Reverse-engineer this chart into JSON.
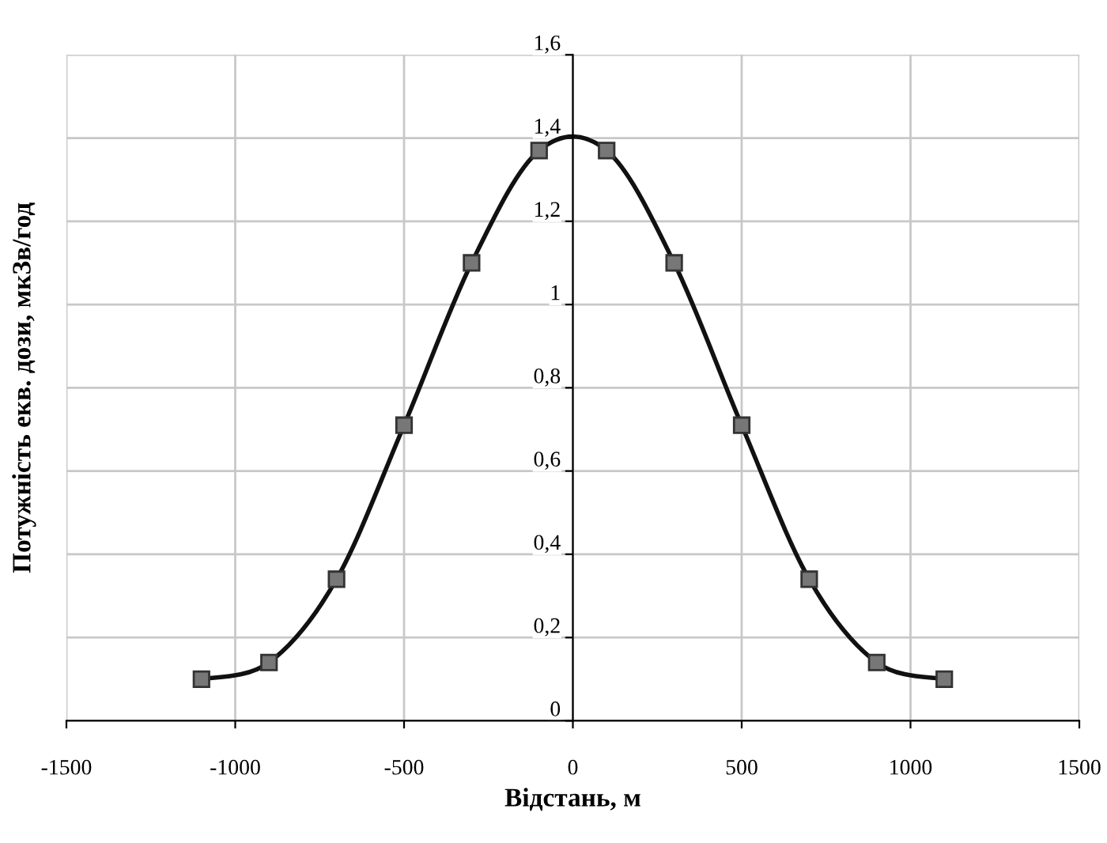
{
  "chart_data": {
    "type": "line",
    "xlabel": "Відстань, м",
    "ylabel": "Потужність екв. дози, мкЗв/год",
    "x": [
      -1100,
      -900,
      -700,
      -500,
      -300,
      -100,
      100,
      300,
      500,
      700,
      900,
      1100
    ],
    "series": [
      {
        "color": "#111111",
        "values": [
          0.1,
          0.14,
          0.34,
          0.71,
          1.1,
          1.37,
          1.37,
          1.1,
          0.71,
          0.34,
          0.14,
          0.1
        ]
      }
    ],
    "xlim": [
      -1500,
      1500
    ],
    "xticks": [
      -1500,
      -1000,
      -500,
      0,
      500,
      1000,
      1500
    ],
    "ylim": [
      0,
      1.6
    ],
    "yticks": [
      {
        "value": 0,
        "label": "0"
      },
      {
        "value": 0.2,
        "label": "0,2"
      },
      {
        "value": 0.4,
        "label": "0,4"
      },
      {
        "value": 0.6,
        "label": "0,6"
      },
      {
        "value": 0.8,
        "label": "0,8"
      },
      {
        "value": 1,
        "label": "1"
      },
      {
        "value": 1.2,
        "label": "1,2"
      },
      {
        "value": 1.4,
        "label": "1,4"
      },
      {
        "value": 1.6,
        "label": "1,6"
      }
    ],
    "grid": true,
    "marker": "square",
    "line_style": "solid",
    "legend": false
  }
}
